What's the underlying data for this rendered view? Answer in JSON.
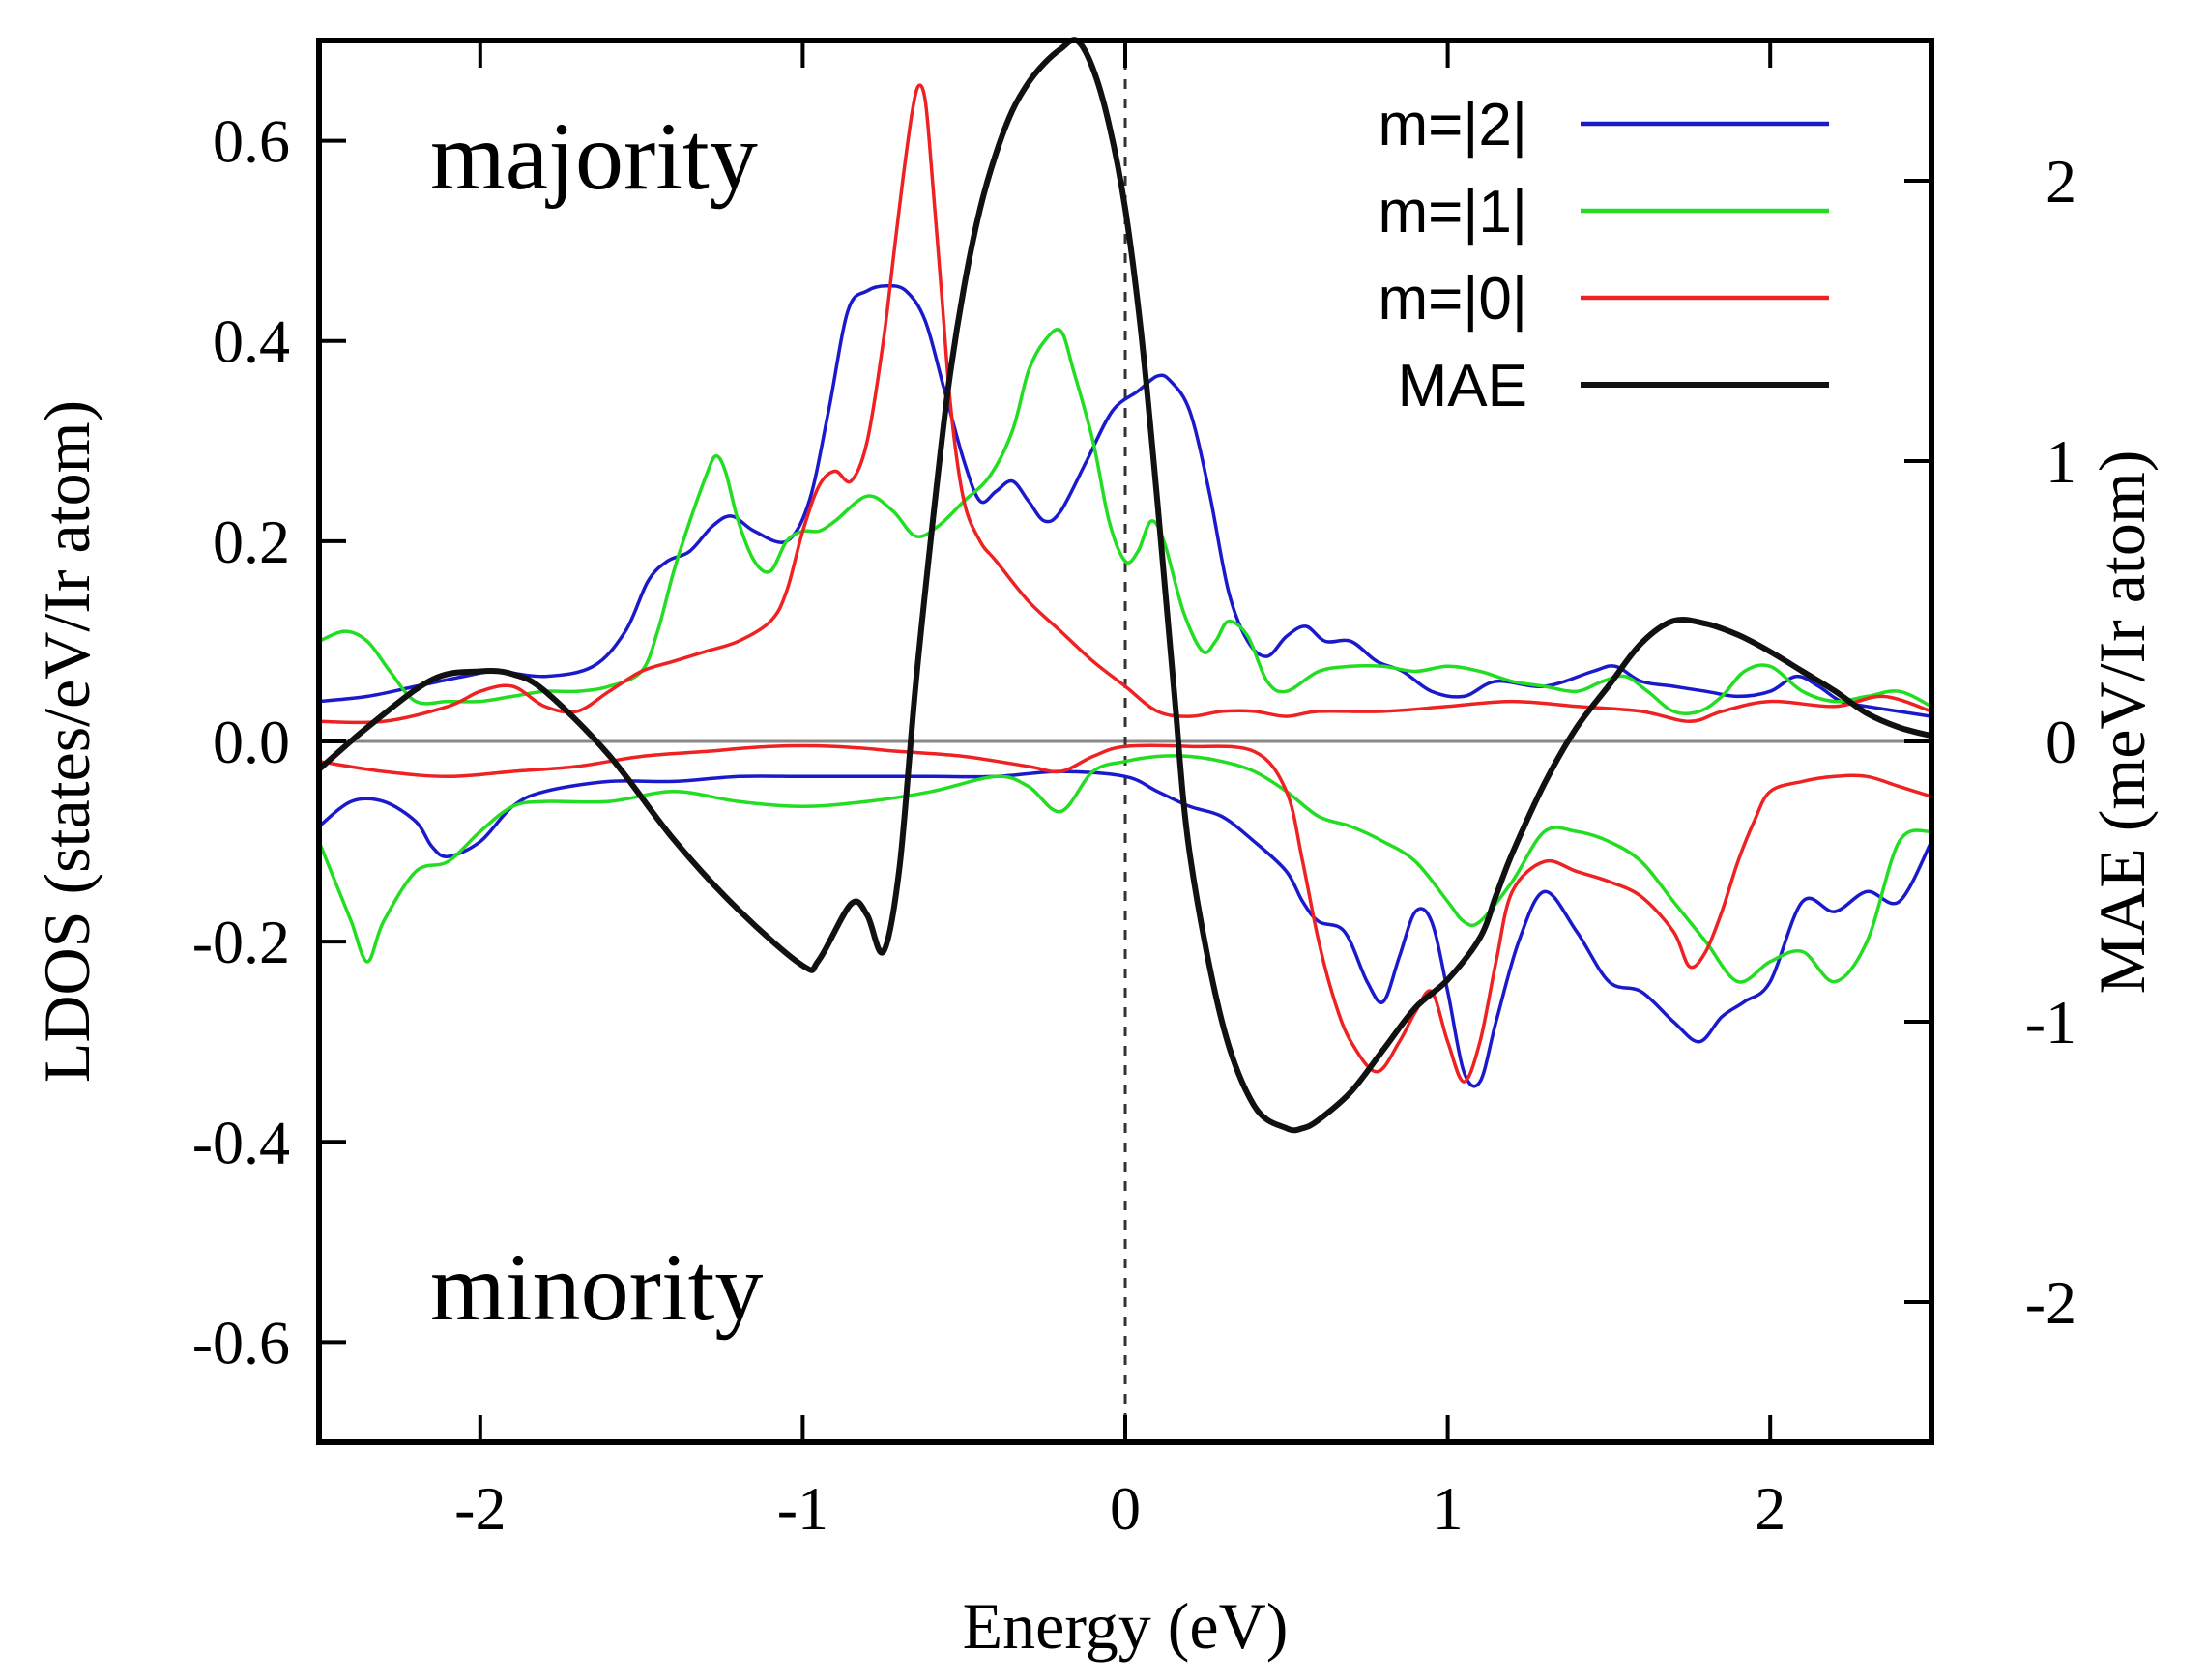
{
  "chart_data": {
    "type": "line",
    "xlabel": "Energy (eV)",
    "ylabel": "LDOS (states/eV/Ir atom)",
    "y2label": "MAE (meV/Ir atom)",
    "xlim": [
      -2.5,
      2.5
    ],
    "ylim": [
      -0.7,
      0.7
    ],
    "y2lim": [
      -2.5,
      2.5
    ],
    "xticks": [
      -2,
      -1,
      0,
      1,
      2
    ],
    "xtick_labels": [
      "-2",
      "-1",
      "0",
      "1",
      "2"
    ],
    "yticks": [
      -0.6,
      -0.4,
      -0.2,
      0.0,
      0.2,
      0.4,
      0.6
    ],
    "ytick_labels": [
      "-0.6",
      "-0.4",
      "-0.2",
      "0.0",
      "0.2",
      "0.4",
      "0.6"
    ],
    "y2ticks": [
      -2,
      -1,
      0,
      1,
      2
    ],
    "y2tick_labels": [
      "-2",
      "-1",
      "0",
      "1",
      "2"
    ],
    "annotations": {
      "majority": "majority",
      "minority": "minority"
    },
    "fermi_level": 0,
    "legend_position": "top-right",
    "series": [
      {
        "name": "m=|2|",
        "color": "#1a1acc",
        "axis": "left",
        "part": "majority",
        "x": [
          -2.5,
          -2.35,
          -2.2,
          -2.05,
          -1.95,
          -1.8,
          -1.65,
          -1.55,
          -1.48,
          -1.42,
          -1.35,
          -1.28,
          -1.22,
          -1.15,
          -1.05,
          -0.98,
          -0.92,
          -0.86,
          -0.8,
          -0.74,
          -0.68,
          -0.62,
          -0.56,
          -0.5,
          -0.45,
          -0.4,
          -0.35,
          -0.3,
          -0.25,
          -0.2,
          -0.12,
          -0.04,
          0.04,
          0.1,
          0.14,
          0.2,
          0.26,
          0.32,
          0.38,
          0.44,
          0.5,
          0.56,
          0.62,
          0.7,
          0.78,
          0.86,
          0.95,
          1.05,
          1.15,
          1.3,
          1.45,
          1.52,
          1.6,
          1.7,
          1.8,
          1.9,
          2.0,
          2.08,
          2.15,
          2.22,
          2.3,
          2.5
        ],
        "y": [
          0.04,
          0.045,
          0.055,
          0.065,
          0.07,
          0.065,
          0.075,
          0.11,
          0.16,
          0.18,
          0.19,
          0.215,
          0.225,
          0.21,
          0.2,
          0.24,
          0.33,
          0.43,
          0.45,
          0.455,
          0.45,
          0.42,
          0.35,
          0.28,
          0.24,
          0.25,
          0.26,
          0.24,
          0.22,
          0.23,
          0.28,
          0.33,
          0.35,
          0.365,
          0.36,
          0.33,
          0.25,
          0.15,
          0.1,
          0.085,
          0.105,
          0.115,
          0.1,
          0.1,
          0.08,
          0.07,
          0.05,
          0.045,
          0.06,
          0.055,
          0.07,
          0.075,
          0.06,
          0.055,
          0.05,
          0.045,
          0.05,
          0.065,
          0.055,
          0.04,
          0.035,
          0.025
        ]
      },
      {
        "name": "m=|2|",
        "color": "#1a1acc",
        "axis": "left",
        "part": "minority",
        "x": [
          -2.5,
          -2.4,
          -2.3,
          -2.2,
          -2.15,
          -2.1,
          -2.0,
          -1.9,
          -1.8,
          -1.6,
          -1.4,
          -1.2,
          -1.0,
          -0.8,
          -0.6,
          -0.4,
          -0.2,
          0.0,
          0.1,
          0.2,
          0.3,
          0.4,
          0.5,
          0.55,
          0.6,
          0.68,
          0.75,
          0.8,
          0.85,
          0.9,
          0.95,
          1.0,
          1.05,
          1.1,
          1.15,
          1.22,
          1.3,
          1.4,
          1.5,
          1.6,
          1.7,
          1.78,
          1.85,
          1.92,
          2.0,
          2.1,
          2.2,
          2.3,
          2.4,
          2.5
        ],
        "y": [
          -0.085,
          -0.06,
          -0.06,
          -0.08,
          -0.105,
          -0.115,
          -0.1,
          -0.065,
          -0.05,
          -0.04,
          -0.04,
          -0.035,
          -0.035,
          -0.035,
          -0.035,
          -0.035,
          -0.03,
          -0.035,
          -0.05,
          -0.065,
          -0.075,
          -0.1,
          -0.13,
          -0.16,
          -0.18,
          -0.19,
          -0.24,
          -0.26,
          -0.215,
          -0.17,
          -0.18,
          -0.25,
          -0.33,
          -0.34,
          -0.28,
          -0.2,
          -0.15,
          -0.19,
          -0.24,
          -0.25,
          -0.28,
          -0.3,
          -0.275,
          -0.26,
          -0.24,
          -0.16,
          -0.17,
          -0.15,
          -0.16,
          -0.1
        ]
      },
      {
        "name": "m=|1|",
        "color": "#22dd22",
        "axis": "left",
        "part": "majority",
        "x": [
          -2.5,
          -2.42,
          -2.35,
          -2.28,
          -2.2,
          -2.1,
          -2.0,
          -1.9,
          -1.8,
          -1.7,
          -1.6,
          -1.5,
          -1.45,
          -1.4,
          -1.35,
          -1.3,
          -1.27,
          -1.24,
          -1.2,
          -1.15,
          -1.1,
          -1.05,
          -1.0,
          -0.95,
          -0.9,
          -0.8,
          -0.72,
          -0.65,
          -0.58,
          -0.5,
          -0.42,
          -0.35,
          -0.3,
          -0.25,
          -0.2,
          -0.16,
          -0.1,
          -0.05,
          0.0,
          0.04,
          0.08,
          0.12,
          0.18,
          0.24,
          0.28,
          0.32,
          0.38,
          0.44,
          0.5,
          0.6,
          0.7,
          0.8,
          0.9,
          1.0,
          1.1,
          1.2,
          1.3,
          1.4,
          1.48,
          1.55,
          1.62,
          1.7,
          1.78,
          1.85,
          1.92,
          2.0,
          2.1,
          2.2,
          2.3,
          2.4,
          2.5
        ],
        "y": [
          0.1,
          0.11,
          0.1,
          0.07,
          0.04,
          0.04,
          0.04,
          0.045,
          0.05,
          0.05,
          0.055,
          0.07,
          0.11,
          0.17,
          0.22,
          0.265,
          0.285,
          0.27,
          0.22,
          0.18,
          0.17,
          0.2,
          0.21,
          0.21,
          0.22,
          0.245,
          0.23,
          0.205,
          0.215,
          0.24,
          0.265,
          0.31,
          0.37,
          0.4,
          0.41,
          0.37,
          0.3,
          0.22,
          0.18,
          0.19,
          0.22,
          0.2,
          0.13,
          0.09,
          0.1,
          0.12,
          0.105,
          0.06,
          0.05,
          0.07,
          0.075,
          0.075,
          0.07,
          0.075,
          0.07,
          0.06,
          0.055,
          0.05,
          0.06,
          0.065,
          0.05,
          0.03,
          0.03,
          0.045,
          0.07,
          0.075,
          0.05,
          0.04,
          0.045,
          0.05,
          0.035
        ]
      },
      {
        "name": "m=|1|",
        "color": "#22dd22",
        "axis": "left",
        "part": "minority",
        "x": [
          -2.5,
          -2.45,
          -2.4,
          -2.35,
          -2.3,
          -2.2,
          -2.1,
          -2.0,
          -1.9,
          -1.8,
          -1.6,
          -1.4,
          -1.2,
          -1.0,
          -0.8,
          -0.6,
          -0.4,
          -0.3,
          -0.2,
          -0.1,
          0.0,
          0.1,
          0.2,
          0.3,
          0.4,
          0.5,
          0.6,
          0.7,
          0.8,
          0.9,
          1.0,
          1.05,
          1.1,
          1.2,
          1.3,
          1.4,
          1.5,
          1.6,
          1.7,
          1.8,
          1.9,
          2.0,
          2.1,
          2.2,
          2.3,
          2.4,
          2.5
        ],
        "y": [
          -0.1,
          -0.14,
          -0.18,
          -0.22,
          -0.18,
          -0.13,
          -0.12,
          -0.09,
          -0.065,
          -0.06,
          -0.06,
          -0.05,
          -0.06,
          -0.065,
          -0.06,
          -0.05,
          -0.035,
          -0.045,
          -0.07,
          -0.03,
          -0.02,
          -0.015,
          -0.015,
          -0.02,
          -0.03,
          -0.05,
          -0.075,
          -0.085,
          -0.1,
          -0.12,
          -0.16,
          -0.18,
          -0.18,
          -0.14,
          -0.09,
          -0.09,
          -0.1,
          -0.12,
          -0.16,
          -0.2,
          -0.24,
          -0.22,
          -0.21,
          -0.24,
          -0.2,
          -0.1,
          -0.09
        ]
      },
      {
        "name": "m=|0|",
        "color": "#ee2222",
        "axis": "left",
        "part": "majority",
        "x": [
          -2.5,
          -2.3,
          -2.1,
          -2.0,
          -1.9,
          -1.8,
          -1.7,
          -1.6,
          -1.5,
          -1.4,
          -1.3,
          -1.2,
          -1.1,
          -1.05,
          -1.0,
          -0.95,
          -0.9,
          -0.85,
          -0.8,
          -0.75,
          -0.72,
          -0.69,
          -0.66,
          -0.64,
          -0.62,
          -0.6,
          -0.57,
          -0.54,
          -0.5,
          -0.45,
          -0.4,
          -0.3,
          -0.2,
          -0.1,
          0.0,
          0.1,
          0.2,
          0.3,
          0.4,
          0.5,
          0.6,
          0.8,
          1.0,
          1.2,
          1.4,
          1.6,
          1.75,
          1.85,
          2.0,
          2.2,
          2.35,
          2.5
        ],
        "y": [
          0.02,
          0.02,
          0.035,
          0.05,
          0.055,
          0.035,
          0.03,
          0.05,
          0.07,
          0.08,
          0.09,
          0.1,
          0.12,
          0.15,
          0.21,
          0.255,
          0.27,
          0.26,
          0.3,
          0.4,
          0.48,
          0.56,
          0.63,
          0.655,
          0.64,
          0.57,
          0.45,
          0.33,
          0.24,
          0.2,
          0.18,
          0.14,
          0.11,
          0.08,
          0.055,
          0.03,
          0.025,
          0.03,
          0.03,
          0.025,
          0.03,
          0.03,
          0.035,
          0.04,
          0.035,
          0.03,
          0.02,
          0.03,
          0.04,
          0.035,
          0.045,
          0.03
        ]
      },
      {
        "name": "m=|0|",
        "color": "#ee2222",
        "axis": "left",
        "part": "minority",
        "x": [
          -2.5,
          -2.3,
          -2.1,
          -1.9,
          -1.7,
          -1.5,
          -1.3,
          -1.1,
          -0.9,
          -0.7,
          -0.5,
          -0.3,
          -0.2,
          -0.1,
          0.0,
          0.2,
          0.4,
          0.5,
          0.55,
          0.6,
          0.65,
          0.7,
          0.78,
          0.85,
          0.9,
          0.95,
          1.0,
          1.05,
          1.1,
          1.15,
          1.2,
          1.3,
          1.4,
          1.5,
          1.6,
          1.7,
          1.75,
          1.8,
          1.85,
          1.9,
          1.95,
          2.0,
          2.1,
          2.2,
          2.3,
          2.4,
          2.5
        ],
        "y": [
          -0.02,
          -0.03,
          -0.035,
          -0.03,
          -0.025,
          -0.015,
          -0.01,
          -0.005,
          -0.005,
          -0.01,
          -0.015,
          -0.025,
          -0.03,
          -0.015,
          -0.005,
          -0.005,
          -0.01,
          -0.05,
          -0.12,
          -0.2,
          -0.26,
          -0.3,
          -0.33,
          -0.3,
          -0.27,
          -0.25,
          -0.3,
          -0.34,
          -0.3,
          -0.22,
          -0.15,
          -0.12,
          -0.13,
          -0.14,
          -0.155,
          -0.19,
          -0.225,
          -0.21,
          -0.17,
          -0.12,
          -0.08,
          -0.05,
          -0.04,
          -0.035,
          -0.035,
          -0.045,
          -0.055
        ]
      },
      {
        "name": "MAE",
        "color": "#111111",
        "axis": "right",
        "part": "full",
        "x": [
          -2.5,
          -2.35,
          -2.15,
          -2.0,
          -1.9,
          -1.8,
          -1.6,
          -1.4,
          -1.2,
          -1.0,
          -0.95,
          -0.85,
          -0.8,
          -0.75,
          -0.7,
          -0.65,
          -0.6,
          -0.55,
          -0.5,
          -0.45,
          -0.4,
          -0.35,
          -0.3,
          -0.25,
          -0.2,
          -0.15,
          -0.1,
          -0.05,
          0.0,
          0.05,
          0.1,
          0.15,
          0.2,
          0.3,
          0.4,
          0.5,
          0.55,
          0.6,
          0.7,
          0.8,
          0.9,
          1.0,
          1.1,
          1.15,
          1.2,
          1.3,
          1.4,
          1.5,
          1.6,
          1.7,
          1.8,
          1.9,
          2.0,
          2.1,
          2.2,
          2.3,
          2.4,
          2.5
        ],
        "y": [
          -0.1,
          0.05,
          0.22,
          0.25,
          0.24,
          0.18,
          -0.05,
          -0.35,
          -0.6,
          -0.8,
          -0.78,
          -0.58,
          -0.62,
          -0.75,
          -0.45,
          0.2,
          0.75,
          1.25,
          1.62,
          1.9,
          2.1,
          2.25,
          2.35,
          2.42,
          2.47,
          2.5,
          2.4,
          2.2,
          1.9,
          1.45,
          0.85,
          0.2,
          -0.4,
          -1.0,
          -1.3,
          -1.38,
          -1.38,
          -1.35,
          -1.25,
          -1.1,
          -0.95,
          -0.85,
          -0.7,
          -0.55,
          -0.4,
          -0.15,
          0.05,
          0.2,
          0.35,
          0.43,
          0.42,
          0.38,
          0.32,
          0.25,
          0.18,
          0.1,
          0.05,
          0.02
        ]
      }
    ],
    "legend": [
      {
        "label": "m=|2|",
        "color": "#1a1acc"
      },
      {
        "label": "m=|1|",
        "color": "#22dd22"
      },
      {
        "label": "m=|0|",
        "color": "#ee2222"
      },
      {
        "label": "MAE",
        "color": "#111111"
      }
    ]
  }
}
